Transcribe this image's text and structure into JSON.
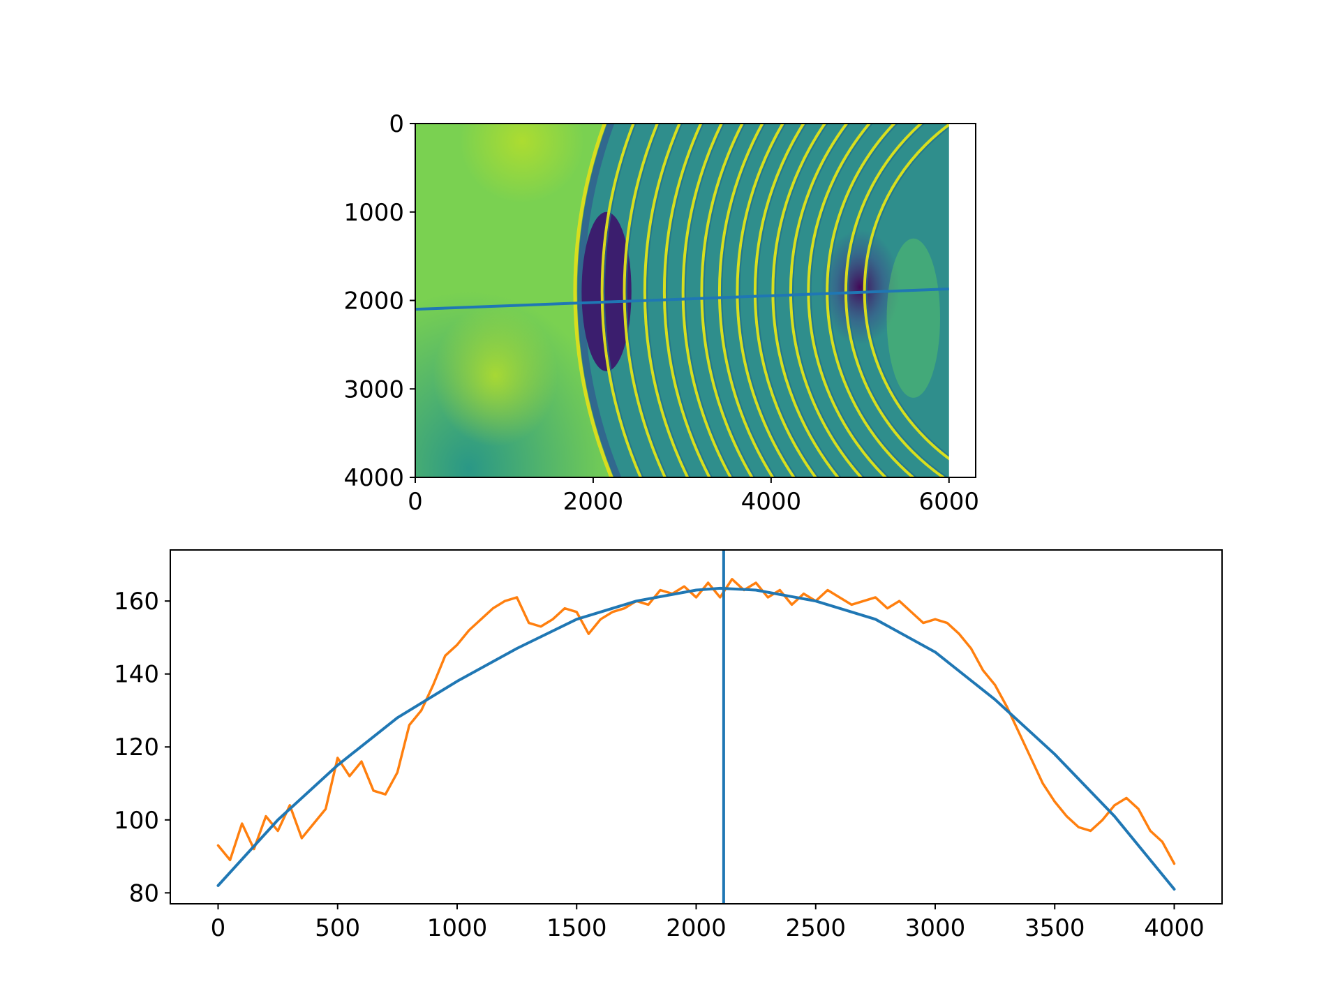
{
  "chart_data": [
    {
      "type": "heatmap",
      "title": "",
      "xlabel": "",
      "ylabel": "",
      "xlim": [
        0,
        6300
      ],
      "ylim": [
        4000,
        0
      ],
      "image_extent": {
        "x": [
          0,
          6000
        ],
        "y": [
          0,
          4000
        ]
      },
      "colormap": "viridis",
      "xticks": [
        0,
        2000,
        4000,
        6000
      ],
      "yticks": [
        0,
        1000,
        2000,
        3000,
        4000
      ],
      "rings": {
        "center_x": 7400,
        "center_y": 1900,
        "radii": [
          2350,
          2560,
          2770,
          2980,
          3180,
          3380,
          3580,
          3780,
          3980,
          4180,
          4390,
          4600,
          4820,
          5050,
          5300,
          5600
        ]
      },
      "dark_spot": {
        "x": 5000,
        "y": 1850
      },
      "grid": false,
      "overlay_line": {
        "color": "#1f77b4",
        "x": [
          0,
          6000
        ],
        "y": [
          2100,
          1870
        ]
      }
    },
    {
      "type": "line",
      "title": "",
      "xlabel": "",
      "ylabel": "",
      "xlim": [
        -200,
        4200
      ],
      "ylim": [
        77,
        174
      ],
      "xticks": [
        0,
        500,
        1000,
        1500,
        2000,
        2500,
        3000,
        3500,
        4000
      ],
      "yticks": [
        80,
        100,
        120,
        140,
        160
      ],
      "grid": false,
      "series": [
        {
          "color": "#1f77b4",
          "x": [
            0,
            250,
            500,
            750,
            1000,
            1250,
            1500,
            1750,
            2000,
            2100,
            2250,
            2500,
            2750,
            3000,
            3250,
            3500,
            3750,
            4000
          ],
          "y": [
            82,
            100,
            115,
            128,
            138,
            147,
            155,
            160,
            163,
            163.5,
            163,
            160,
            155,
            146,
            133,
            118,
            101,
            81
          ]
        },
        {
          "color": "#ff7f0e",
          "x": [
            0,
            50,
            100,
            150,
            200,
            250,
            300,
            350,
            400,
            450,
            500,
            550,
            600,
            650,
            700,
            750,
            800,
            850,
            900,
            950,
            1000,
            1050,
            1100,
            1150,
            1200,
            1250,
            1300,
            1350,
            1400,
            1450,
            1500,
            1550,
            1600,
            1650,
            1700,
            1750,
            1800,
            1850,
            1900,
            1950,
            2000,
            2050,
            2100,
            2150,
            2200,
            2250,
            2300,
            2350,
            2400,
            2450,
            2500,
            2550,
            2600,
            2650,
            2700,
            2750,
            2800,
            2850,
            2900,
            2950,
            3000,
            3050,
            3100,
            3150,
            3200,
            3250,
            3300,
            3350,
            3400,
            3450,
            3500,
            3550,
            3600,
            3650,
            3700,
            3750,
            3800,
            3850,
            3900,
            3950,
            4000
          ],
          "y": [
            93,
            89,
            99,
            92,
            101,
            97,
            104,
            95,
            99,
            103,
            117,
            112,
            116,
            108,
            107,
            113,
            126,
            130,
            137,
            145,
            148,
            152,
            155,
            158,
            160,
            161,
            154,
            153,
            155,
            158,
            157,
            151,
            155,
            157,
            158,
            160,
            159,
            163,
            162,
            164,
            161,
            165,
            161,
            166,
            163,
            165,
            161,
            163,
            159,
            162,
            160,
            163,
            161,
            159,
            160,
            161,
            158,
            160,
            157,
            154,
            155,
            154,
            151,
            147,
            141,
            137,
            131,
            124,
            117,
            110,
            105,
            101,
            98,
            97,
            100,
            104,
            106,
            103,
            97,
            94,
            88
          ]
        },
        {
          "color": "#1f77b4",
          "kind": "vertical_line",
          "x": 2115
        }
      ]
    }
  ]
}
